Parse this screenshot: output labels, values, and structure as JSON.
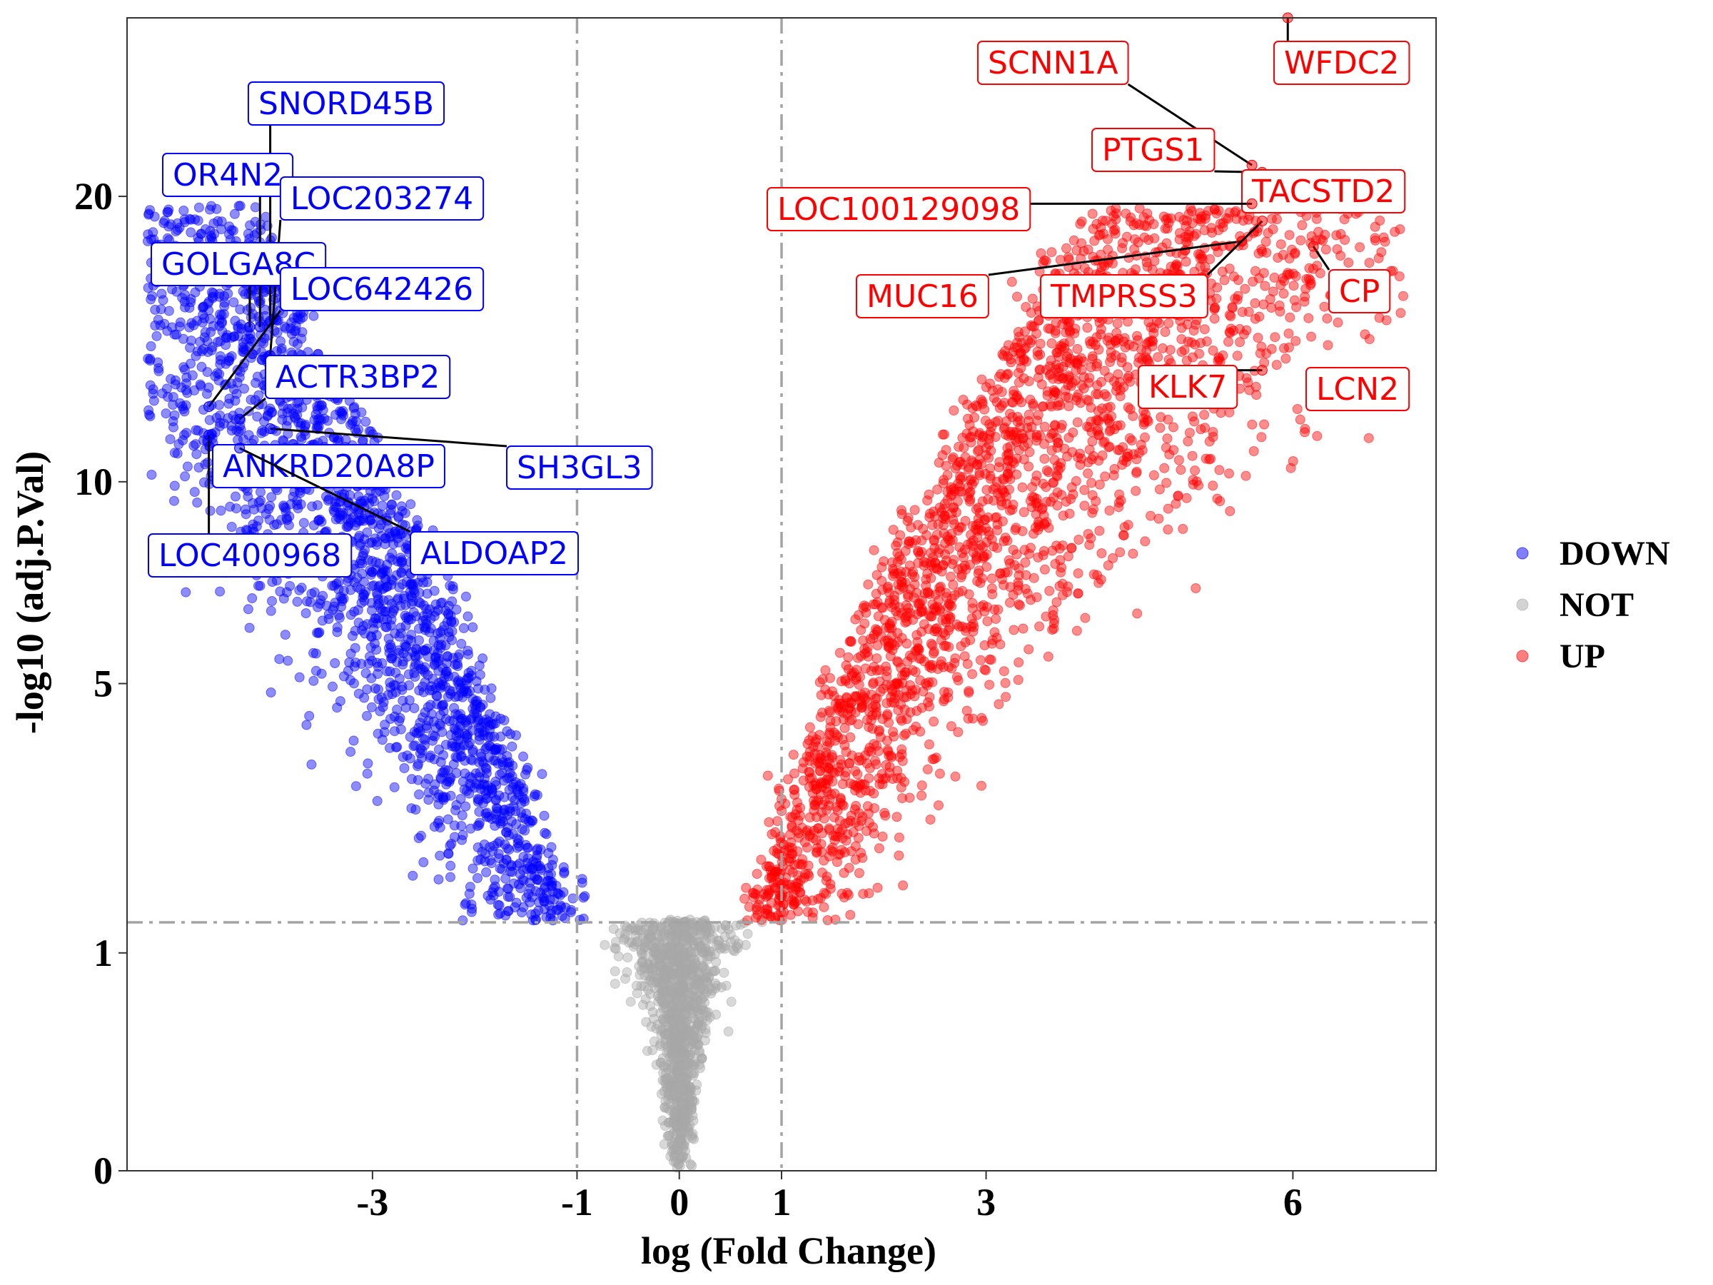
{
  "chart_data": {
    "type": "scatter",
    "subtype": "volcano",
    "title": "",
    "xlabel": "log (Fold Change)",
    "ylabel": "-log10 (adj.P.Val)",
    "xlim": [
      -5.4,
      7.4
    ],
    "x_ticks": [
      -3,
      -1,
      0,
      1,
      3,
      6
    ],
    "y_ticks": [
      0,
      1,
      5,
      10,
      20
    ],
    "y_scale": "sqrt",
    "ylim": [
      -0.01,
      28
    ],
    "thresholds": {
      "logfc": [
        -1,
        1
      ],
      "neglog10_padj": 1.3
    },
    "grid": false,
    "legend_position": "right",
    "series": [
      {
        "name": "DOWN",
        "color": "#0000ff"
      },
      {
        "name": "NOT",
        "color": "#a8a8a8"
      },
      {
        "name": "UP",
        "color": "#ff0000"
      }
    ],
    "labeled_points": [
      {
        "label": "SNORD45B",
        "x": -4.0,
        "y": 15.2,
        "group": "DOWN"
      },
      {
        "label": "OR4N2",
        "x": -4.1,
        "y": 15.0,
        "group": "DOWN"
      },
      {
        "label": "LOC203274",
        "x": -4.0,
        "y": 14.0,
        "group": "DOWN"
      },
      {
        "label": "GOLGA8C",
        "x": -4.2,
        "y": 15.0,
        "group": "DOWN"
      },
      {
        "label": "LOC642426",
        "x": -4.6,
        "y": 12.3,
        "group": "DOWN"
      },
      {
        "label": "ACTR3BP2",
        "x": -4.3,
        "y": 11.9,
        "group": "DOWN"
      },
      {
        "label": "SH3GL3",
        "x": -4.0,
        "y": 11.6,
        "group": "DOWN"
      },
      {
        "label": "ANKRD20A8P",
        "x": -4.5,
        "y": 10.2,
        "group": "DOWN"
      },
      {
        "label": "ALDOAP2",
        "x": -4.3,
        "y": 11.0,
        "group": "DOWN"
      },
      {
        "label": "LOC400968",
        "x": -4.6,
        "y": 11.4,
        "group": "DOWN"
      },
      {
        "label": "SCNN1A",
        "x": 5.6,
        "y": 21.3,
        "group": "UP"
      },
      {
        "label": "WFDC2",
        "x": 5.95,
        "y": 28.0,
        "group": "UP"
      },
      {
        "label": "PTGS1",
        "x": 5.7,
        "y": 21.0,
        "group": "UP"
      },
      {
        "label": "TACSTD2",
        "x": 5.9,
        "y": 19.6,
        "group": "UP"
      },
      {
        "label": "LOC100129098",
        "x": 5.6,
        "y": 19.7,
        "group": "UP"
      },
      {
        "label": "CP",
        "x": 6.2,
        "y": 18.0,
        "group": "UP"
      },
      {
        "label": "MUC16",
        "x": 5.5,
        "y": 18.2,
        "group": "UP"
      },
      {
        "label": "TMPRSS3",
        "x": 5.7,
        "y": 19.0,
        "group": "UP"
      },
      {
        "label": "KLK7",
        "x": 5.7,
        "y": 13.5,
        "group": "UP"
      },
      {
        "label": "LCN2",
        "x": 6.3,
        "y": 13.3,
        "group": "UP"
      }
    ]
  }
}
